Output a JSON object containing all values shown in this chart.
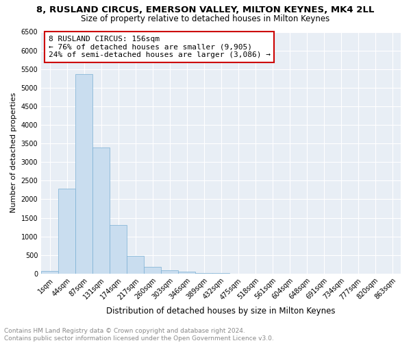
{
  "title": "8, RUSLAND CIRCUS, EMERSON VALLEY, MILTON KEYNES, MK4 2LL",
  "subtitle": "Size of property relative to detached houses in Milton Keynes",
  "xlabel": "Distribution of detached houses by size in Milton Keynes",
  "ylabel": "Number of detached properties",
  "footnote": "Contains HM Land Registry data © Crown copyright and database right 2024.\nContains public sector information licensed under the Open Government Licence v3.0.",
  "bar_labels": [
    "1sqm",
    "44sqm",
    "87sqm",
    "131sqm",
    "174sqm",
    "217sqm",
    "260sqm",
    "303sqm",
    "346sqm",
    "389sqm",
    "432sqm",
    "475sqm",
    "518sqm",
    "561sqm",
    "604sqm",
    "648sqm",
    "691sqm",
    "734sqm",
    "777sqm",
    "820sqm",
    "863sqm"
  ],
  "bar_values": [
    70,
    2280,
    5370,
    3390,
    1300,
    480,
    185,
    95,
    55,
    20,
    8,
    3,
    0,
    0,
    0,
    0,
    0,
    0,
    0,
    0,
    0
  ],
  "bar_color": "#c9ddef",
  "bar_edge_color": "#7aafd4",
  "annotation_box_text": "8 RUSLAND CIRCUS: 156sqm\n← 76% of detached houses are smaller (9,905)\n24% of semi-detached houses are larger (3,086) →",
  "annotation_box_color": "#ffffff",
  "annotation_box_edge_color": "#cc0000",
  "ylim": [
    0,
    6500
  ],
  "yticks": [
    0,
    500,
    1000,
    1500,
    2000,
    2500,
    3000,
    3500,
    4000,
    4500,
    5000,
    5500,
    6000,
    6500
  ],
  "plot_bg_color": "#e8eef5",
  "grid_color": "#ffffff",
  "title_fontsize": 9.5,
  "subtitle_fontsize": 8.5,
  "xlabel_fontsize": 8.5,
  "ylabel_fontsize": 8,
  "tick_fontsize": 7,
  "annotation_fontsize": 8,
  "footnote_fontsize": 6.5
}
